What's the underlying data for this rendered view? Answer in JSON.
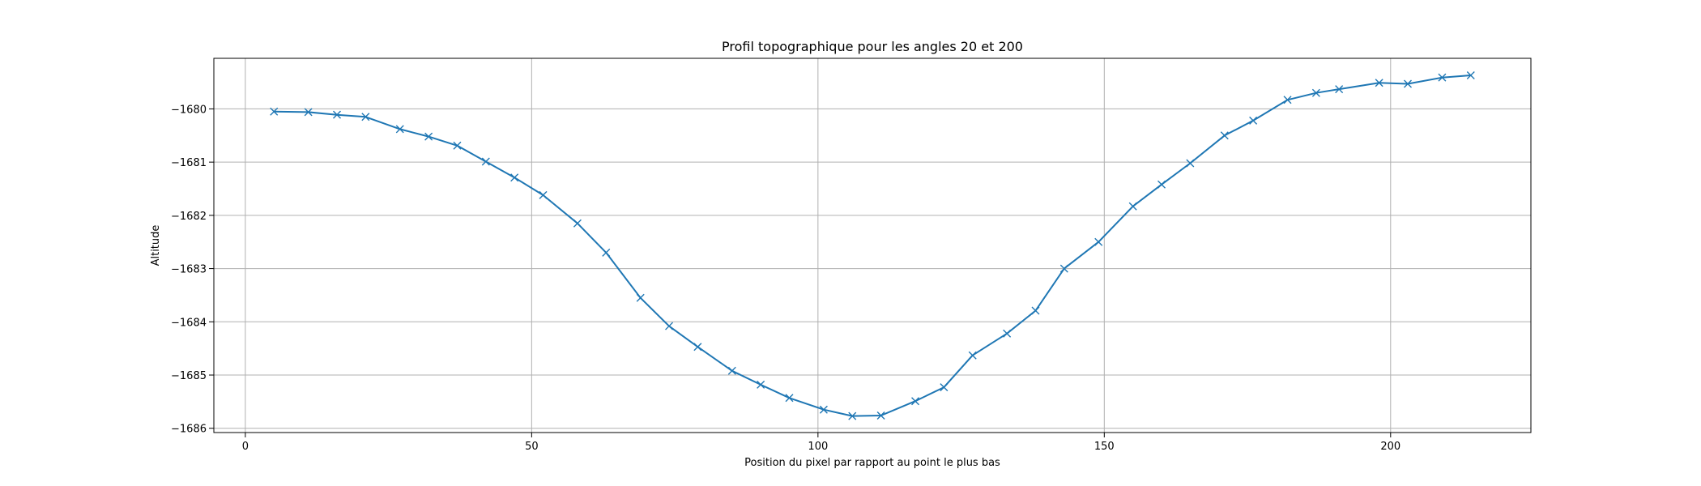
{
  "chart_data": {
    "type": "line",
    "title": "Profil topographique pour les angles 20 et 200",
    "xlabel": "Position du pixel par rapport au point le plus bas",
    "ylabel": "Altitude",
    "xlim": [
      -5.5,
      224.5
    ],
    "ylim": [
      -1686.08,
      -1679.05
    ],
    "xticks": [
      0,
      50,
      100,
      150,
      200
    ],
    "yticks": [
      -1680,
      -1681,
      -1682,
      -1683,
      -1684,
      -1685,
      -1686
    ],
    "grid": true,
    "line_color": "#1f77b4",
    "marker": "x",
    "series": [
      {
        "x": [
          5,
          11,
          16,
          21,
          27,
          32,
          37,
          42,
          47,
          52,
          58,
          63,
          69,
          74,
          79,
          85,
          90,
          95,
          101,
          106,
          111,
          117,
          122,
          127,
          133,
          138,
          143,
          149,
          155,
          160,
          165,
          171,
          176,
          182,
          187,
          191,
          198,
          203,
          209,
          214
        ],
        "y": [
          -1680.05,
          -1680.06,
          -1680.11,
          -1680.15,
          -1680.38,
          -1680.52,
          -1680.69,
          -1680.99,
          -1681.29,
          -1681.62,
          -1682.15,
          -1682.7,
          -1683.55,
          -1684.08,
          -1684.47,
          -1684.92,
          -1685.18,
          -1685.43,
          -1685.65,
          -1685.77,
          -1685.76,
          -1685.49,
          -1685.23,
          -1684.63,
          -1684.22,
          -1683.79,
          -1683.0,
          -1682.5,
          -1681.83,
          -1681.42,
          -1681.02,
          -1680.5,
          -1680.22,
          -1679.83,
          -1679.7,
          -1679.63,
          -1679.51,
          -1679.53,
          -1679.41,
          -1679.37
        ]
      }
    ]
  }
}
